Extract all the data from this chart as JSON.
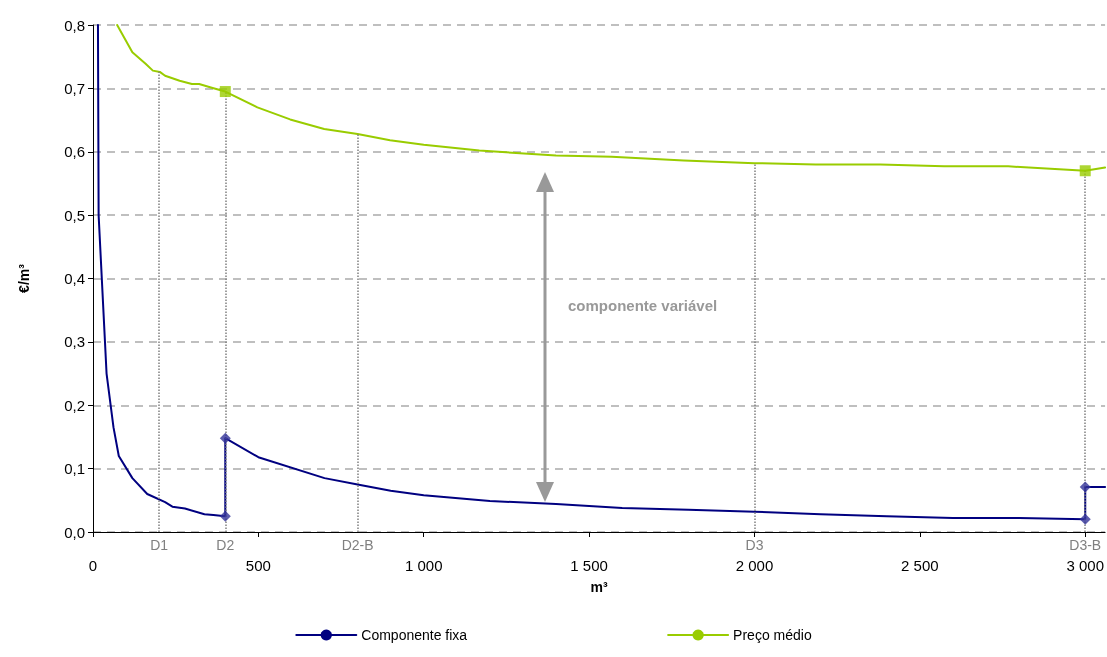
{
  "chart_data": {
    "type": "line",
    "xlabel": "m³",
    "ylabel": "€/m³",
    "xlim": [
      0,
      3060
    ],
    "ylim": [
      0,
      0.8
    ],
    "xticks": [
      0,
      500,
      {
        "value": 1000,
        "label": "1 000"
      },
      {
        "value": 1500,
        "label": "1 500"
      },
      {
        "value": 2000,
        "label": "2 000"
      },
      {
        "value": 2500,
        "label": "2 500"
      },
      {
        "value": 3000,
        "label": "3 000"
      }
    ],
    "yticks": [
      {
        "value": 0,
        "label": "0,0"
      },
      {
        "value": 0.1,
        "label": "0,1"
      },
      {
        "value": 0.2,
        "label": "0,2"
      },
      {
        "value": 0.3,
        "label": "0,3"
      },
      {
        "value": 0.4,
        "label": "0,4"
      },
      {
        "value": 0.5,
        "label": "0,5"
      },
      {
        "value": 0.6,
        "label": "0,6"
      },
      {
        "value": 0.7,
        "label": "0,7"
      },
      {
        "value": 0.8,
        "label": "0,8"
      }
    ],
    "grid": "y",
    "legend": "bottom",
    "line_style": "solid",
    "series": [
      {
        "name": "Componente fixa",
        "color": "#000080",
        "x": [
          15,
          17,
          41,
          62,
          78,
          119,
          164,
          218,
          240,
          278,
          337,
          364,
          400,
          400,
          500,
          700,
          800,
          900,
          1000,
          1200,
          1400,
          1600,
          1800,
          2000,
          2200,
          2400,
          2600,
          2800,
          3000,
          3000,
          3060
        ],
        "values": [
          0.8,
          0.5,
          0.25,
          0.165,
          0.12,
          0.085,
          0.06,
          0.047,
          0.04,
          0.037,
          0.028,
          0.027,
          0.025,
          0.148,
          0.118,
          0.085,
          0.075,
          0.065,
          0.058,
          0.049,
          0.044,
          0.038,
          0.035,
          0.032,
          0.028,
          0.025,
          0.022,
          0.022,
          0.02,
          0.071,
          0.071
        ]
      },
      {
        "name": "Preço médio",
        "color": "#99cc00",
        "x": [
          73,
          119,
          159,
          181,
          202,
          218,
          262,
          299,
          321,
          359,
          400,
          497,
          596,
          699,
          800,
          898,
          1000,
          1168,
          1400,
          1568,
          1786,
          2000,
          2185,
          2380,
          2573,
          2767,
          3000,
          3060
        ],
        "values": [
          0.8,
          0.757,
          0.739,
          0.728,
          0.726,
          0.72,
          0.712,
          0.707,
          0.707,
          0.701,
          0.695,
          0.67,
          0.651,
          0.636,
          0.628,
          0.618,
          0.611,
          0.602,
          0.594,
          0.592,
          0.586,
          0.582,
          0.58,
          0.58,
          0.577,
          0.577,
          0.57,
          0.575
        ]
      },
      {
        "type": "scatter",
        "marker": "diamond",
        "color": "#333399",
        "x": [
          400,
          400,
          3000,
          3000
        ],
        "values": [
          0.025,
          0.148,
          0.02,
          0.071
        ]
      },
      {
        "type": "scatter",
        "marker": "square",
        "color": "#99cc00",
        "x": [
          400,
          3000
        ],
        "values": [
          0.695,
          0.57
        ]
      }
    ],
    "ref_lines": [
      {
        "axis": "x",
        "value": 200,
        "label": "D1",
        "color": "#808080",
        "line_style": "dotted"
      },
      {
        "axis": "x",
        "value": 400,
        "label": "D2",
        "color": "#808080",
        "line_style": "dotted"
      },
      {
        "axis": "x",
        "value": 800,
        "label": "D2-B",
        "color": "#808080",
        "line_style": "dotted"
      },
      {
        "axis": "x",
        "value": 2000,
        "label": "D3",
        "color": "#808080",
        "line_style": "dotted"
      },
      {
        "axis": "x",
        "value": 3000,
        "label": "D3-B",
        "color": "#808080",
        "line_style": "dotted"
      }
    ],
    "annotations": [
      "componente variável"
    ]
  }
}
